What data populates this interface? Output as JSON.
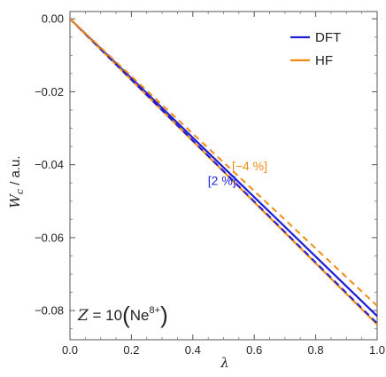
{
  "chart_data": {
    "type": "line",
    "xlabel": "λ",
    "ylabel_main": "W",
    "ylabel_sub": "c",
    "ylabel_unit": " / a.u.",
    "xlim": [
      0.0,
      1.0
    ],
    "ylim": [
      -0.088,
      0.002
    ],
    "x_ticks": [
      0.0,
      0.2,
      0.4,
      0.6,
      0.8,
      1.0
    ],
    "x_tick_labels": [
      "0.0",
      "0.2",
      "0.4",
      "0.6",
      "0.8",
      "1.0"
    ],
    "y_ticks": [
      0.0,
      -0.02,
      -0.04,
      -0.06,
      -0.08
    ],
    "y_tick_labels": [
      "0.00",
      "−0.02",
      "−0.04",
      "−0.06",
      "−0.08"
    ],
    "legend_position": "top-right",
    "series": [
      {
        "name": "DFT",
        "style": "solid",
        "color": "#1f1fd6",
        "x": [
          0.0,
          1.0
        ],
        "y": [
          0.0,
          -0.0815
        ]
      },
      {
        "name": "HF",
        "style": "solid",
        "color": "#f28c14",
        "x": [
          0.0,
          1.0
        ],
        "y": [
          0.0,
          -0.0838
        ]
      },
      {
        "name": "",
        "style": "dashed",
        "color": "#1f1fd6",
        "x": [
          0.0,
          1.0
        ],
        "y": [
          0.0,
          -0.0835
        ]
      },
      {
        "name": "",
        "style": "dashed",
        "color": "#f28c14",
        "x": [
          0.0,
          1.0
        ],
        "y": [
          0.0,
          -0.0787
        ]
      }
    ],
    "annotations": [
      {
        "text": "[−4 %]",
        "color": "#f28c14",
        "x": 0.585,
        "y": -0.0415
      },
      {
        "text": "[2 %]",
        "color": "#1f1fd6",
        "x": 0.495,
        "y": -0.0455
      }
    ],
    "system_label": {
      "prefix": "Z",
      "equals": " = 10",
      "element": "Ne",
      "charge": "8+"
    }
  }
}
